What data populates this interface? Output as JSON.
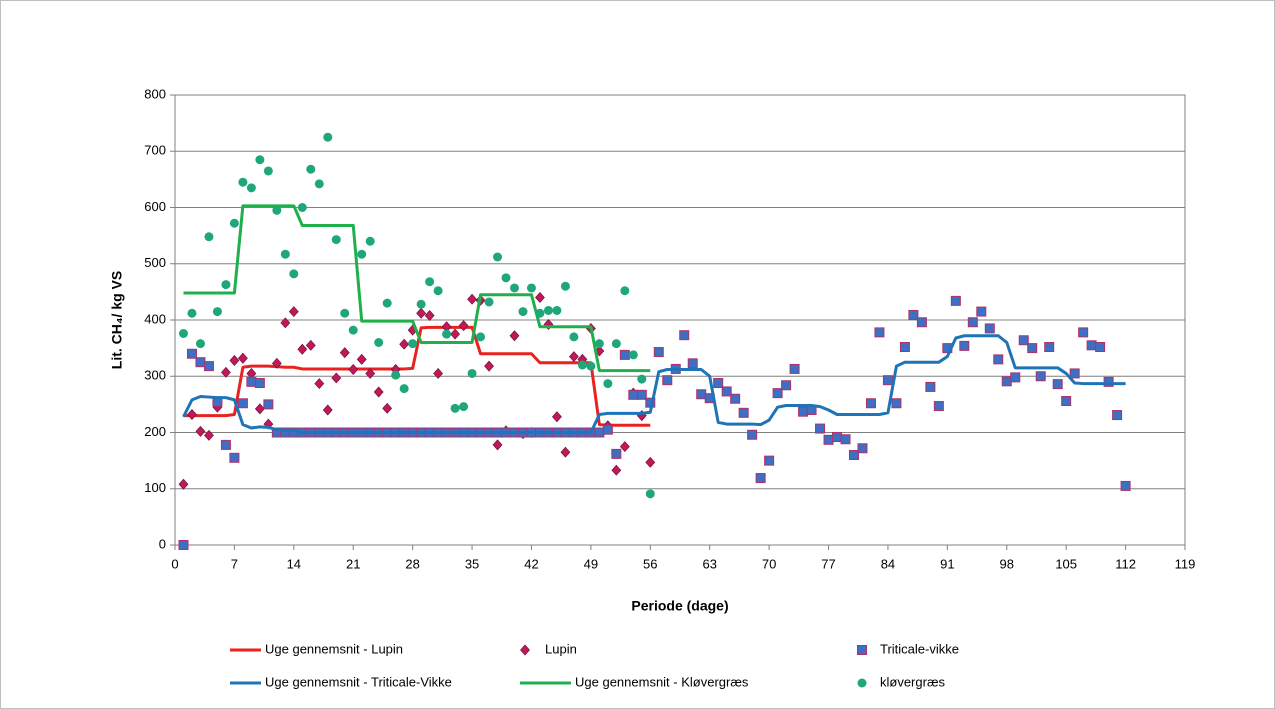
{
  "chart_data": {
    "type": "scatter",
    "x_label": "Periode (dage)",
    "y_label": "Lit. CH₄/ kg VS",
    "xlim": [
      0,
      119
    ],
    "xticks": [
      0,
      7,
      14,
      21,
      28,
      35,
      42,
      49,
      56,
      63,
      70,
      77,
      84,
      91,
      98,
      105,
      112,
      119
    ],
    "ylim": [
      0,
      800
    ],
    "yticks": [
      0,
      100,
      200,
      300,
      400,
      500,
      600,
      700,
      800
    ],
    "grid": true,
    "legend": "bottom",
    "series": [
      {
        "name": "Uge gennemsnit - Lupin",
        "type": "line",
        "color": "#e8231f",
        "x": [
          1,
          2,
          3,
          4,
          5,
          6,
          7,
          8,
          9,
          10,
          11,
          12,
          13,
          14,
          15,
          16,
          17,
          18,
          19,
          20,
          21,
          22,
          23,
          24,
          25,
          26,
          27,
          28,
          29,
          30,
          31,
          32,
          33,
          34,
          35,
          36,
          37,
          38,
          39,
          40,
          41,
          42,
          43,
          44,
          45,
          46,
          47,
          48,
          49,
          50,
          51,
          52,
          53,
          54,
          55,
          56
        ],
        "values": [
          230,
          230,
          230,
          230,
          230,
          230,
          232,
          316,
          318,
          318,
          318,
          317,
          316,
          316,
          313,
          313,
          313,
          313,
          313,
          313,
          313,
          313,
          313,
          313,
          313,
          313,
          313,
          314,
          386,
          387,
          387,
          387,
          387,
          387,
          387,
          340,
          340,
          340,
          340,
          340,
          340,
          340,
          324,
          324,
          324,
          324,
          324,
          324,
          324,
          214,
          213,
          213,
          213,
          213,
          213,
          213
        ]
      },
      {
        "name": "Lupin",
        "type": "scatter",
        "marker": "diamond",
        "color": "#c0185a",
        "x": [
          1,
          2,
          3,
          4,
          5,
          6,
          7,
          8,
          9,
          10,
          11,
          12,
          13,
          14,
          15,
          16,
          17,
          18,
          19,
          20,
          21,
          22,
          23,
          24,
          25,
          26,
          27,
          28,
          29,
          30,
          31,
          32,
          33,
          34,
          35,
          36,
          37,
          38,
          39,
          40,
          41,
          42,
          43,
          44,
          45,
          46,
          47,
          48,
          49,
          50,
          51,
          52,
          53,
          54,
          55,
          56
        ],
        "values": [
          108,
          232,
          202,
          195,
          245,
          307,
          328,
          332,
          305,
          242,
          215,
          323,
          395,
          415,
          348,
          355,
          287,
          240,
          297,
          342,
          312,
          330,
          305,
          272,
          243,
          312,
          357,
          382,
          412,
          408,
          305,
          388,
          375,
          390,
          437,
          435,
          318,
          178,
          203,
          372,
          198,
          200,
          440,
          392,
          228,
          165,
          335,
          330,
          385,
          345,
          212,
          133,
          175,
          270,
          230,
          147
        ]
      },
      {
        "name": "Triticale-vikke",
        "type": "scatter",
        "marker": "square",
        "color": "#3d6fc4",
        "x": [
          1,
          2,
          3,
          4,
          5,
          6,
          7,
          8,
          9,
          10,
          11,
          12,
          13,
          14,
          15,
          16,
          17,
          18,
          19,
          20,
          21,
          22,
          23,
          24,
          25,
          26,
          27,
          28,
          29,
          30,
          31,
          32,
          33,
          34,
          35,
          36,
          37,
          38,
          39,
          40,
          41,
          42,
          43,
          44,
          45,
          46,
          47,
          48,
          49,
          50,
          51,
          52,
          53,
          54,
          55,
          56,
          57,
          58,
          59,
          60,
          61,
          62,
          63,
          64,
          65,
          66,
          67,
          68,
          69,
          70,
          71,
          72,
          73,
          74,
          75,
          76,
          77,
          78,
          79,
          80,
          81,
          82,
          83,
          84,
          85,
          86,
          87,
          88,
          89,
          90,
          91,
          92,
          93,
          94,
          95,
          96,
          97,
          98,
          99,
          100,
          101,
          102,
          103,
          104,
          105,
          106,
          107,
          108,
          109,
          110,
          111,
          112
        ],
        "values": [
          0,
          340,
          325,
          318,
          255,
          178,
          155,
          252,
          290,
          288,
          250,
          200,
          200,
          200,
          200,
          200,
          200,
          200,
          200,
          200,
          200,
          200,
          200,
          200,
          200,
          200,
          200,
          200,
          200,
          200,
          200,
          200,
          200,
          200,
          200,
          200,
          200,
          200,
          200,
          200,
          200,
          200,
          200,
          200,
          200,
          200,
          200,
          200,
          200,
          200,
          205,
          162,
          338,
          267,
          267,
          253,
          343,
          293,
          313,
          373,
          323,
          268,
          261,
          288,
          273,
          260,
          235,
          196,
          119,
          150,
          270,
          284,
          313,
          237,
          240,
          207,
          187,
          192,
          188,
          160,
          172,
          252,
          378,
          293,
          252,
          352,
          409,
          396,
          281,
          247,
          350,
          434,
          354,
          396,
          415,
          385,
          330,
          291,
          298,
          364,
          350,
          300,
          352,
          286,
          256,
          305,
          378,
          355,
          352,
          290,
          231,
          105
        ]
      },
      {
        "name": "Uge gennemsnit - Triticale-Vikke",
        "type": "line",
        "color": "#1f74b8",
        "x": [
          1,
          2,
          3,
          4,
          5,
          6,
          7,
          8,
          9,
          10,
          11,
          12,
          13,
          14,
          15,
          16,
          17,
          18,
          19,
          20,
          21,
          22,
          23,
          24,
          25,
          26,
          27,
          28,
          29,
          30,
          31,
          32,
          33,
          34,
          35,
          36,
          37,
          38,
          39,
          40,
          41,
          42,
          43,
          44,
          45,
          46,
          47,
          48,
          49,
          50,
          51,
          52,
          53,
          54,
          55,
          56,
          57,
          58,
          59,
          60,
          61,
          62,
          63,
          64,
          65,
          66,
          67,
          68,
          69,
          70,
          71,
          72,
          73,
          74,
          75,
          76,
          77,
          78,
          79,
          80,
          81,
          82,
          83,
          84,
          85,
          86,
          87,
          88,
          89,
          90,
          91,
          92,
          93,
          94,
          95,
          96,
          97,
          98,
          99,
          100,
          101,
          102,
          103,
          104,
          105,
          106,
          107,
          108,
          109,
          110,
          111,
          112
        ],
        "values": [
          228,
          258,
          264,
          263,
          262,
          262,
          258,
          214,
          208,
          210,
          209,
          205,
          204,
          204,
          200,
          200,
          200,
          200,
          200,
          200,
          200,
          200,
          200,
          200,
          200,
          200,
          200,
          200,
          200,
          200,
          200,
          200,
          200,
          200,
          200,
          200,
          200,
          200,
          200,
          200,
          200,
          200,
          200,
          200,
          200,
          200,
          200,
          200,
          200,
          232,
          234,
          234,
          234,
          234,
          234,
          236,
          308,
          312,
          312,
          312,
          312,
          312,
          300,
          218,
          215,
          215,
          215,
          215,
          214,
          222,
          245,
          248,
          248,
          248,
          248,
          246,
          240,
          232,
          232,
          232,
          232,
          232,
          232,
          235,
          318,
          325,
          325,
          325,
          325,
          325,
          335,
          368,
          372,
          372,
          372,
          372,
          372,
          360,
          315,
          315,
          315,
          315,
          315,
          315,
          305,
          288,
          287,
          287,
          287,
          287,
          287,
          287
        ]
      },
      {
        "name": "Uge gennemsnit - Kløvergræs",
        "type": "line",
        "color": "#20b04b",
        "x": [
          1,
          2,
          3,
          4,
          5,
          6,
          7,
          8,
          9,
          10,
          11,
          12,
          13,
          14,
          15,
          16,
          17,
          18,
          19,
          20,
          21,
          22,
          23,
          24,
          25,
          26,
          27,
          28,
          29,
          30,
          31,
          32,
          33,
          34,
          35,
          36,
          37,
          38,
          39,
          40,
          41,
          42,
          43,
          44,
          45,
          46,
          47,
          48,
          49,
          50,
          51,
          52,
          53,
          54,
          55,
          56
        ],
        "values": [
          448,
          448,
          448,
          448,
          448,
          448,
          448,
          603,
          603,
          603,
          603,
          603,
          603,
          603,
          568,
          568,
          568,
          568,
          568,
          568,
          568,
          398,
          398,
          398,
          398,
          398,
          398,
          398,
          360,
          360,
          360,
          360,
          360,
          360,
          360,
          445,
          445,
          445,
          445,
          445,
          445,
          445,
          388,
          388,
          388,
          388,
          388,
          388,
          388,
          310,
          310,
          310,
          310,
          310,
          310,
          310
        ]
      },
      {
        "name": "kløvergræs",
        "type": "scatter",
        "marker": "circle",
        "color": "#1fa67a",
        "x": [
          1,
          2,
          3,
          4,
          5,
          6,
          7,
          8,
          9,
          10,
          11,
          12,
          13,
          14,
          15,
          16,
          17,
          18,
          19,
          20,
          21,
          22,
          23,
          24,
          25,
          26,
          27,
          28,
          29,
          30,
          31,
          32,
          33,
          34,
          35,
          36,
          37,
          38,
          39,
          40,
          41,
          42,
          43,
          44,
          45,
          46,
          47,
          48,
          49,
          50,
          51,
          52,
          53,
          54,
          55,
          56
        ],
        "values": [
          376,
          412,
          358,
          548,
          415,
          463,
          572,
          645,
          635,
          685,
          665,
          595,
          517,
          482,
          600,
          668,
          642,
          725,
          543,
          412,
          382,
          517,
          540,
          360,
          430,
          302,
          278,
          358,
          428,
          468,
          452,
          375,
          243,
          246,
          305,
          370,
          432,
          512,
          475,
          457,
          415,
          457,
          412,
          417,
          417,
          460,
          370,
          320,
          318,
          358,
          287,
          358,
          452,
          338,
          295,
          91
        ]
      }
    ]
  }
}
